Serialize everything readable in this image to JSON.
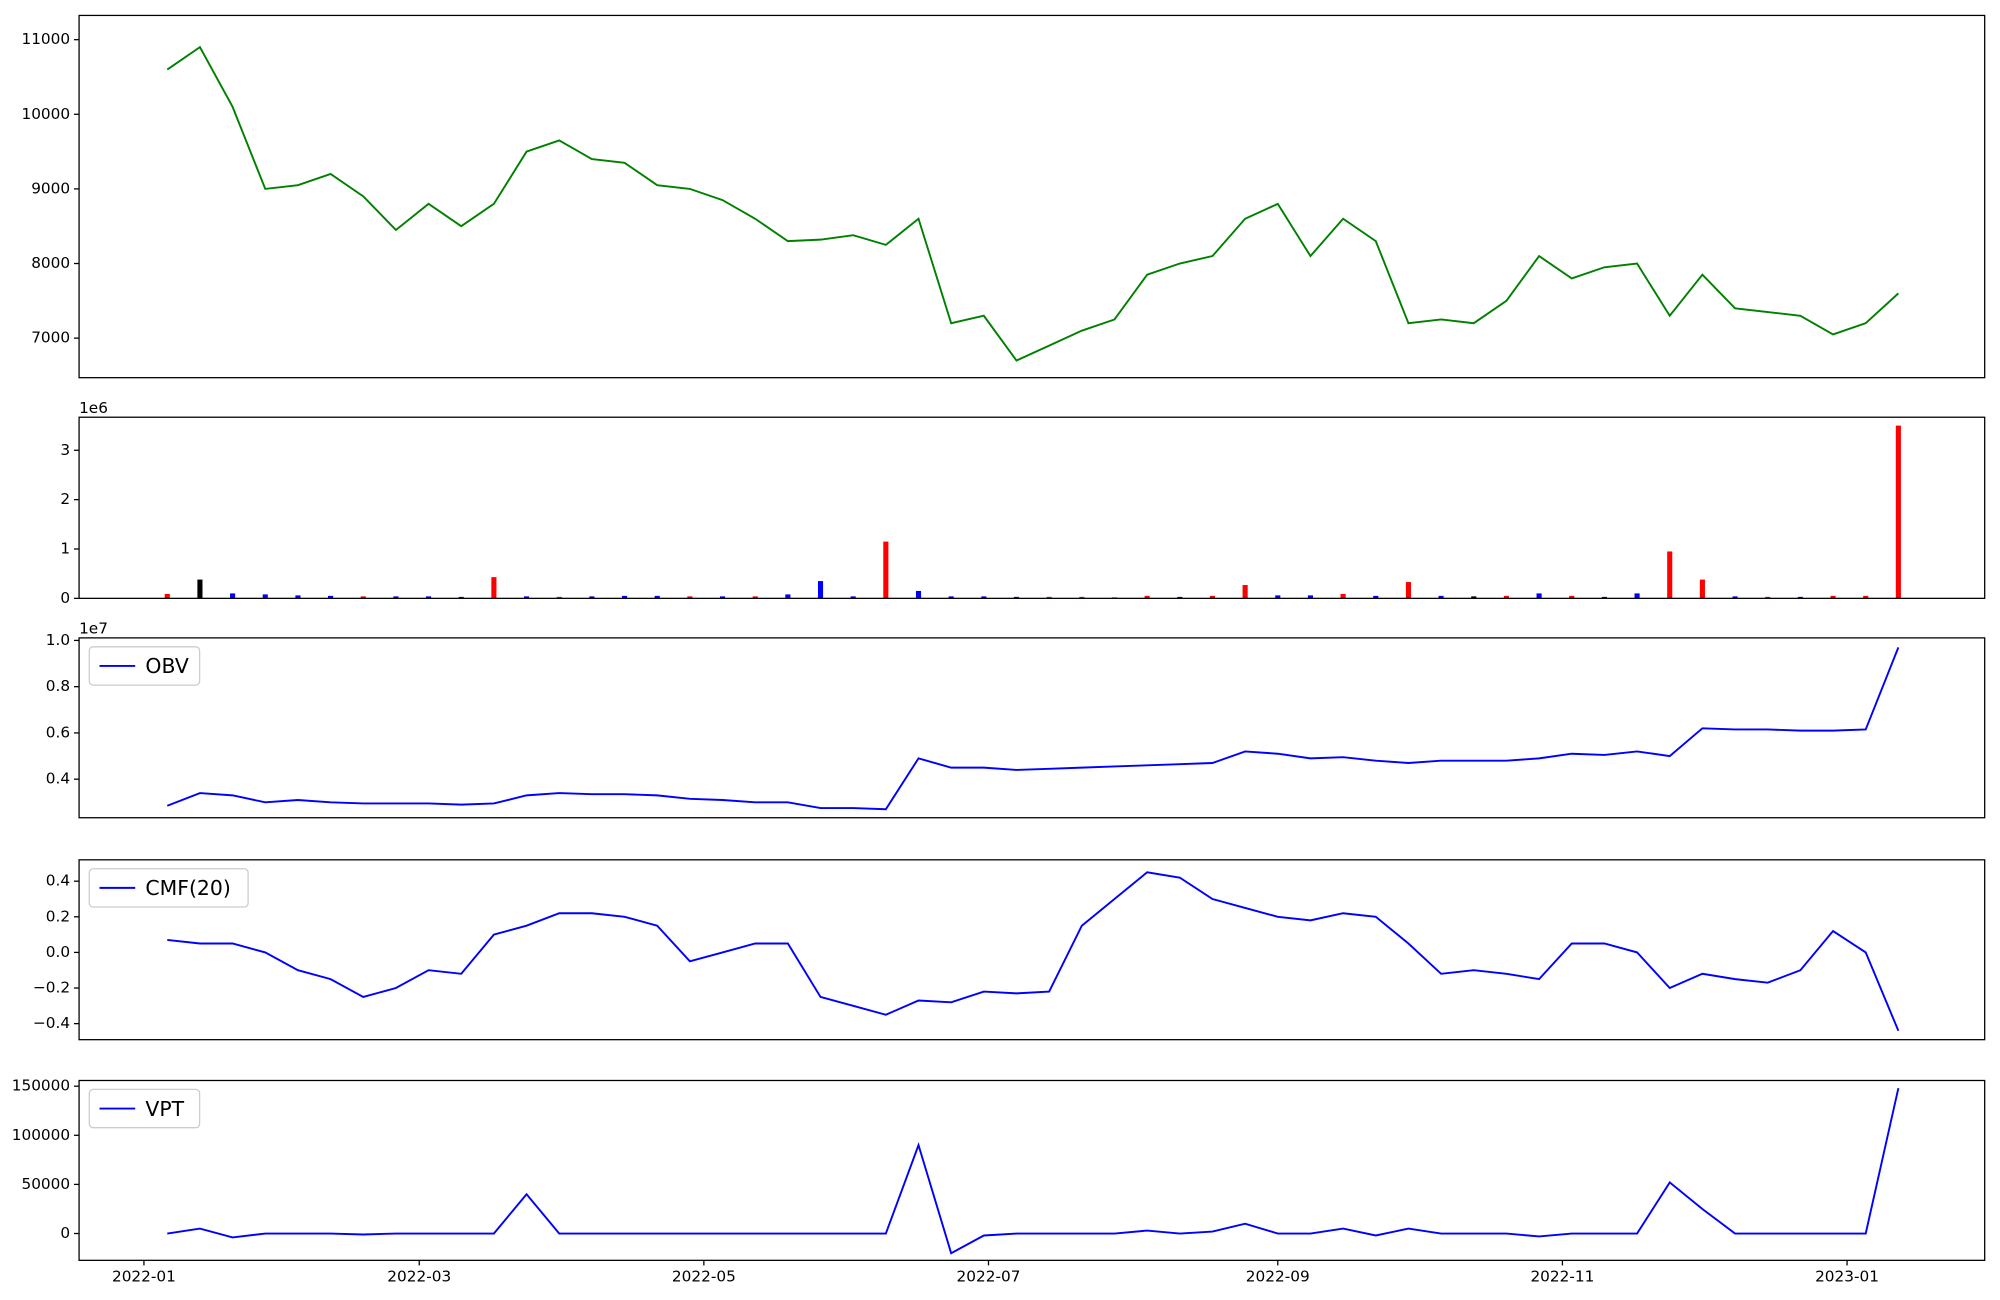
{
  "chart_data": [
    {
      "type": "line",
      "x": [
        5,
        12,
        19,
        26,
        33,
        40,
        47,
        54,
        61,
        68,
        75,
        82,
        89,
        96,
        103,
        110,
        117,
        124,
        131,
        138,
        145,
        152,
        159,
        166,
        173,
        180,
        187,
        194,
        201,
        208,
        215,
        222,
        229,
        236,
        243,
        250,
        257,
        264,
        271,
        278,
        285,
        292,
        299,
        306,
        313,
        320,
        327,
        334,
        341,
        348,
        355,
        362,
        369,
        376
      ],
      "values": [
        10600,
        10900,
        10100,
        9000,
        9050,
        9200,
        8900,
        8450,
        8800,
        8500,
        8800,
        9500,
        9650,
        9400,
        9350,
        9050,
        9000,
        8850,
        8600,
        8300,
        8320,
        8380,
        8250,
        8600,
        7200,
        7300,
        6700,
        6900,
        7100,
        7250,
        7850,
        8000,
        8100,
        8600,
        8800,
        8100,
        8600,
        8300,
        7200,
        7250,
        7200,
        7500,
        8100,
        7800,
        7950,
        8000,
        7300,
        7850,
        7400,
        7350,
        7300,
        7050,
        7200,
        7600
      ],
      "color": "green",
      "xlim": [
        -13.9,
        394.5
      ],
      "ylim": [
        6470,
        11325
      ],
      "yticks": [
        7000,
        8000,
        9000,
        10000,
        11000
      ]
    },
    {
      "type": "bar",
      "x": [
        5,
        12,
        19,
        26,
        33,
        40,
        47,
        54,
        61,
        68,
        75,
        82,
        89,
        96,
        103,
        110,
        117,
        124,
        131,
        138,
        145,
        152,
        159,
        166,
        173,
        180,
        187,
        194,
        201,
        208,
        215,
        222,
        229,
        236,
        243,
        250,
        257,
        264,
        271,
        278,
        285,
        292,
        299,
        306,
        313,
        320,
        327,
        334,
        341,
        348,
        355,
        362,
        369,
        376
      ],
      "values": [
        90000,
        380000,
        100000,
        80000,
        60000,
        50000,
        40000,
        40000,
        40000,
        30000,
        430000,
        40000,
        30000,
        40000,
        50000,
        50000,
        40000,
        40000,
        40000,
        80000,
        350000,
        40000,
        1150000,
        150000,
        40000,
        40000,
        30000,
        30000,
        30000,
        20000,
        50000,
        30000,
        50000,
        270000,
        60000,
        60000,
        90000,
        50000,
        330000,
        50000,
        40000,
        50000,
        100000,
        50000,
        30000,
        100000,
        950000,
        380000,
        40000,
        30000,
        30000,
        50000,
        50000,
        3500000
      ],
      "colors": [
        "red",
        "black",
        "blue",
        "blue",
        "blue",
        "blue",
        "red",
        "blue",
        "blue",
        "blue",
        "red",
        "blue",
        "red",
        "blue",
        "blue",
        "blue",
        "red",
        "blue",
        "red",
        "blue",
        "blue",
        "blue",
        "red",
        "blue",
        "blue",
        "blue",
        "blue",
        "red",
        "red",
        "red",
        "red",
        "blue",
        "red",
        "red",
        "blue",
        "blue",
        "red",
        "blue",
        "red",
        "blue",
        "black",
        "red",
        "blue",
        "red",
        "blue",
        "blue",
        "red",
        "red",
        "blue",
        "red",
        "blue",
        "red",
        "red",
        "red"
      ],
      "xlim": [
        -13.9,
        394.5
      ],
      "ylim": [
        0,
        3670000
      ],
      "yticks": [
        0,
        {
          "value": 1000000,
          "label": "1"
        },
        {
          "value": 2000000,
          "label": "2"
        },
        {
          "value": 3000000,
          "label": "3"
        }
      ],
      "y_offset_label": "1e6"
    },
    {
      "type": "line",
      "x": [
        5,
        12,
        19,
        26,
        33,
        40,
        47,
        54,
        61,
        68,
        75,
        82,
        89,
        96,
        103,
        110,
        117,
        124,
        131,
        138,
        145,
        152,
        159,
        166,
        173,
        180,
        187,
        194,
        201,
        208,
        215,
        222,
        229,
        236,
        243,
        250,
        257,
        264,
        271,
        278,
        285,
        292,
        299,
        306,
        313,
        320,
        327,
        334,
        341,
        348,
        355,
        362,
        369,
        376
      ],
      "series": [
        {
          "name": "OBV",
          "color": "blue",
          "values": [
            2850000,
            3400000,
            3300000,
            3000000,
            3100000,
            3000000,
            2950000,
            2950000,
            2950000,
            2900000,
            2950000,
            3300000,
            3400000,
            3350000,
            3350000,
            3300000,
            3150000,
            3100000,
            3000000,
            3000000,
            2750000,
            2750000,
            2700000,
            4900000,
            4500000,
            4500000,
            4400000,
            4450000,
            4500000,
            4550000,
            4600000,
            4650000,
            4700000,
            5200000,
            5100000,
            4900000,
            4950000,
            4800000,
            4700000,
            4800000,
            4800000,
            4800000,
            4900000,
            5100000,
            5050000,
            5200000,
            5000000,
            6200000,
            6150000,
            6150000,
            6100000,
            6100000,
            6150000,
            9700000
          ]
        }
      ],
      "legend": "upper left",
      "xlim": [
        -13.9,
        394.5
      ],
      "ylim": [
        2333000,
        10110000
      ],
      "yticks": [
        {
          "value": 4000000,
          "label": "0.4"
        },
        {
          "value": 6000000,
          "label": "0.6"
        },
        {
          "value": 8000000,
          "label": "0.8"
        },
        {
          "value": 10000000,
          "label": "1.0"
        }
      ],
      "y_offset_label": "1e7"
    },
    {
      "type": "line",
      "x": [
        5,
        12,
        19,
        26,
        33,
        40,
        47,
        54,
        61,
        68,
        75,
        82,
        89,
        96,
        103,
        110,
        117,
        124,
        131,
        138,
        145,
        152,
        159,
        166,
        173,
        180,
        187,
        194,
        201,
        208,
        215,
        222,
        229,
        236,
        243,
        250,
        257,
        264,
        271,
        278,
        285,
        292,
        299,
        306,
        313,
        320,
        327,
        334,
        341,
        348,
        355,
        362,
        369,
        376
      ],
      "series": [
        {
          "name": "CMF(20)",
          "color": "blue",
          "values": [
            0.07,
            0.05,
            0.05,
            0.0,
            -0.1,
            -0.15,
            -0.25,
            -0.2,
            -0.1,
            -0.12,
            0.1,
            0.15,
            0.22,
            0.22,
            0.2,
            0.15,
            -0.05,
            0.0,
            0.05,
            0.05,
            -0.25,
            -0.3,
            -0.35,
            -0.27,
            -0.28,
            -0.22,
            -0.23,
            -0.22,
            0.15,
            0.3,
            0.45,
            0.42,
            0.3,
            0.25,
            0.2,
            0.18,
            0.22,
            0.2,
            0.05,
            -0.12,
            -0.1,
            -0.12,
            -0.15,
            0.05,
            0.05,
            0.0,
            -0.2,
            -0.12,
            -0.15,
            -0.17,
            -0.1,
            0.12,
            0.0,
            -0.44
          ]
        }
      ],
      "legend": "upper left",
      "xlim": [
        -13.9,
        394.5
      ],
      "ylim": [
        -0.49,
        0.52
      ],
      "yticks": [
        {
          "value": -0.4,
          "label": "−0.4"
        },
        {
          "value": -0.2,
          "label": "−0.2"
        },
        {
          "value": 0,
          "label": "0.0"
        },
        0.2,
        0.4
      ]
    },
    {
      "type": "line",
      "x": [
        5,
        12,
        19,
        26,
        33,
        40,
        47,
        54,
        61,
        68,
        75,
        82,
        89,
        96,
        103,
        110,
        117,
        124,
        131,
        138,
        145,
        152,
        159,
        166,
        173,
        180,
        187,
        194,
        201,
        208,
        215,
        222,
        229,
        236,
        243,
        250,
        257,
        264,
        271,
        278,
        285,
        292,
        299,
        306,
        313,
        320,
        327,
        334,
        341,
        348,
        355,
        362,
        369,
        376
      ],
      "series": [
        {
          "name": "VPT",
          "color": "blue",
          "values": [
            0,
            5000,
            -4000,
            0,
            0,
            0,
            -1000,
            0,
            0,
            0,
            0,
            40000,
            0,
            0,
            0,
            0,
            0,
            0,
            0,
            0,
            0,
            0,
            0,
            90000,
            -20000,
            -2000,
            0,
            0,
            0,
            0,
            3000,
            0,
            2000,
            10000,
            0,
            0,
            5000,
            -2000,
            5000,
            0,
            0,
            0,
            -3000,
            0,
            0,
            0,
            52000,
            25000,
            0,
            0,
            0,
            0,
            0,
            148000
          ]
        }
      ],
      "legend": "upper left",
      "xlim": [
        -13.9,
        394.5
      ],
      "ylim": [
        -27300,
        155800
      ],
      "yticks": [
        0,
        50000,
        100000,
        150000
      ],
      "xticks": [
        {
          "value": 0,
          "label": "2022-01"
        },
        {
          "value": 59,
          "label": "2022-03"
        },
        {
          "value": 120,
          "label": "2022-05"
        },
        {
          "value": 181,
          "label": "2022-07"
        },
        {
          "value": 243,
          "label": "2022-09"
        },
        {
          "value": 304,
          "label": "2022-11"
        },
        {
          "value": 365,
          "label": "2023-01"
        }
      ]
    }
  ]
}
